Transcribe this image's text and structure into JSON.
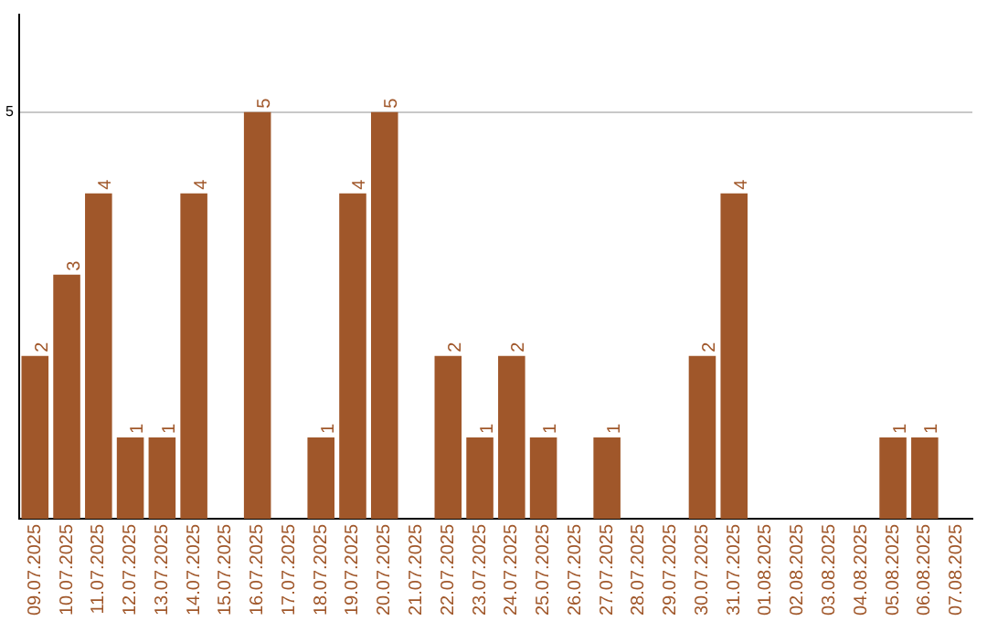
{
  "chart_data": {
    "type": "bar",
    "categories": [
      "09.07.2025",
      "10.07.2025",
      "11.07.2025",
      "12.07.2025",
      "13.07.2025",
      "14.07.2025",
      "15.07.2025",
      "16.07.2025",
      "17.07.2025",
      "18.07.2025",
      "19.07.2025",
      "20.07.2025",
      "21.07.2025",
      "22.07.2025",
      "23.07.2025",
      "24.07.2025",
      "25.07.2025",
      "26.07.2025",
      "27.07.2025",
      "28.07.2025",
      "29.07.2025",
      "30.07.2025",
      "31.07.2025",
      "01.08.2025",
      "02.08.2025",
      "03.08.2025",
      "04.08.2025",
      "05.08.2025",
      "06.08.2025",
      "07.08.2025"
    ],
    "values": [
      2,
      3,
      4,
      1,
      1,
      4,
      0,
      5,
      0,
      1,
      4,
      5,
      0,
      2,
      1,
      2,
      1,
      0,
      1,
      0,
      0,
      2,
      4,
      0,
      0,
      0,
      0,
      1,
      1,
      0
    ],
    "value_labels": [
      "2",
      "3",
      "4",
      "1",
      "1",
      "4",
      null,
      "5",
      null,
      "1",
      "4",
      "5",
      null,
      "2",
      "1",
      "2",
      "1",
      null,
      "1",
      null,
      null,
      "2",
      "4",
      null,
      null,
      null,
      null,
      "1",
      "1",
      null
    ],
    "color": "#a0572a",
    "ylim": [
      0,
      6.2
    ],
    "yticks": [
      5
    ],
    "grid": "y",
    "legend": false
  }
}
